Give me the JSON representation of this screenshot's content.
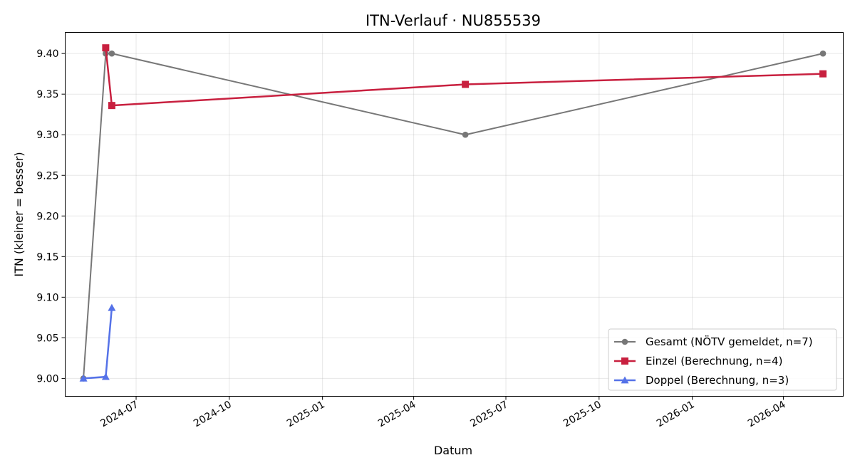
{
  "chart_data": {
    "type": "line",
    "title": "ITN-Verlauf · NU855539",
    "xlabel": "Datum",
    "ylabel": "ITN  (kleiner = besser)",
    "x_type": "date",
    "xlim": [
      "2024-04-22",
      "2026-05-30"
    ],
    "ylim": [
      8.978,
      9.426
    ],
    "x_ticks": [
      "2024-07",
      "2024-10",
      "2025-01",
      "2025-04",
      "2025-07",
      "2025-10",
      "2026-01",
      "2026-04"
    ],
    "y_ticks": [
      "9.00",
      "9.05",
      "9.10",
      "9.15",
      "9.20",
      "9.25",
      "9.30",
      "9.35",
      "9.40"
    ],
    "grid": true,
    "legend_position": "lower-right",
    "series": [
      {
        "name": "Gesamt (NÖTV gemeldet, n=7)",
        "color": "#777777",
        "marker": "circle",
        "points": [
          {
            "x": "2024-05-10",
            "y": 9.0
          },
          {
            "x": "2024-06-01",
            "y": 9.4
          },
          {
            "x": "2024-06-07",
            "y": 9.4
          },
          {
            "x": "2025-05-22",
            "y": 9.3
          },
          {
            "x": "2026-05-10",
            "y": 9.4
          }
        ]
      },
      {
        "name": "Einzel (Berechnung, n=4)",
        "color": "#c8203f",
        "marker": "square",
        "points": [
          {
            "x": "2024-06-01",
            "y": 9.407
          },
          {
            "x": "2024-06-07",
            "y": 9.336
          },
          {
            "x": "2025-05-22",
            "y": 9.362
          },
          {
            "x": "2026-05-10",
            "y": 9.375
          }
        ]
      },
      {
        "name": "Doppel (Berechnung, n=3)",
        "color": "#5572e8",
        "marker": "triangle",
        "points": [
          {
            "x": "2024-05-10",
            "y": 9.0
          },
          {
            "x": "2024-06-01",
            "y": 9.002
          },
          {
            "x": "2024-06-07",
            "y": 9.087
          }
        ]
      }
    ]
  }
}
